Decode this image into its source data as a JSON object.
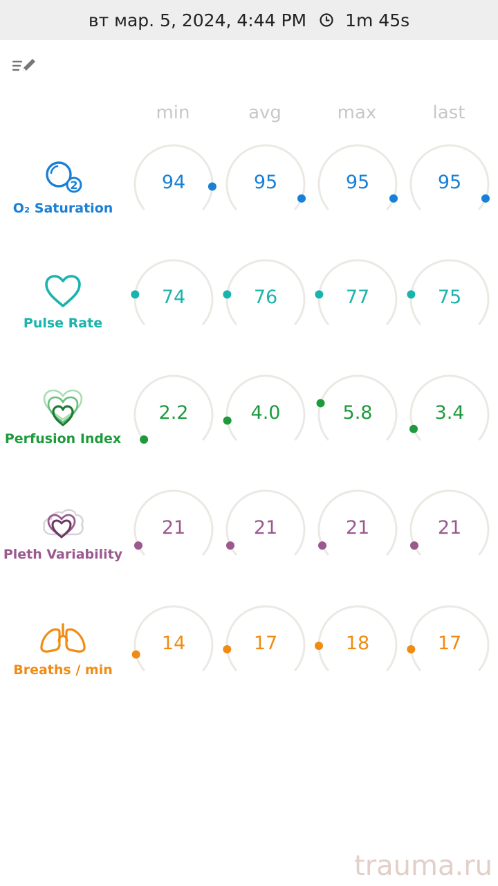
{
  "status_bar": {
    "datetime": "вт мар. 5, 2024, 4:44 PM",
    "duration": "1m 45s",
    "clock_icon": "clock-icon"
  },
  "toolbar": {
    "edit_icon": "list-edit-icon"
  },
  "columns": [
    "min",
    "avg",
    "max",
    "last"
  ],
  "metrics": [
    {
      "key": "spo2",
      "label": "O₂ Saturation",
      "icon": "oxygen-bubble-icon",
      "color": "#1a7fd6",
      "values": [
        "94",
        "95",
        "95",
        "95"
      ],
      "levels": [
        0.86,
        0.93,
        0.93,
        0.93
      ]
    },
    {
      "key": "pulse",
      "label": "Pulse Rate",
      "icon": "heart-icon",
      "color": "#1ab3ad",
      "values": [
        "74",
        "76",
        "77",
        "75"
      ],
      "levels": [
        0.18,
        0.18,
        0.18,
        0.18
      ]
    },
    {
      "key": "pi",
      "label": "Perfusion Index",
      "icon": "layered-hearts-icon",
      "color": "#1e9a3c",
      "values": [
        "2.2",
        "4.0",
        "5.8",
        "3.4"
      ],
      "levels": [
        0.0,
        0.12,
        0.22,
        0.07
      ]
    },
    {
      "key": "pvi",
      "label": "Pleth Variability",
      "icon": "heart-cloud-icon",
      "color": "#9a5a8e",
      "values": [
        "21",
        "21",
        "21",
        "21"
      ],
      "levels": [
        0.06,
        0.06,
        0.06,
        0.06
      ]
    },
    {
      "key": "rr",
      "label": "Breaths / min",
      "icon": "lungs-icon",
      "color": "#f08c14",
      "values": [
        "14",
        "17",
        "18",
        "17"
      ],
      "levels": [
        0.1,
        0.13,
        0.15,
        0.13
      ]
    }
  ],
  "colors": {
    "track": "#ece9e4",
    "header_text": "#c8c8c8",
    "status_bg": "#eeeeee"
  },
  "watermark": "trauma.ru"
}
